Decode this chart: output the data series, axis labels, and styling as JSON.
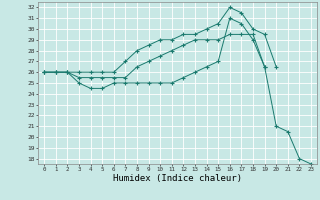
{
  "xlabel": "Humidex (Indice chaleur)",
  "xlim": [
    -0.5,
    23.5
  ],
  "ylim": [
    17.5,
    32.5
  ],
  "yticks": [
    18,
    19,
    20,
    21,
    22,
    23,
    24,
    25,
    26,
    27,
    28,
    29,
    30,
    31,
    32
  ],
  "xticks": [
    0,
    1,
    2,
    3,
    4,
    5,
    6,
    7,
    8,
    9,
    10,
    11,
    12,
    13,
    14,
    15,
    16,
    17,
    18,
    19,
    20,
    21,
    22,
    23
  ],
  "background_color": "#c8e8e5",
  "grid_color": "#ffffff",
  "line_color": "#1a7a6e",
  "series_max": [
    26,
    26,
    26,
    26,
    26,
    26,
    26,
    27,
    28,
    28.5,
    29,
    29,
    29.5,
    29.5,
    30,
    30.5,
    32,
    31.5,
    30,
    29.5,
    26.5,
    null,
    null,
    null
  ],
  "series_mean": [
    26,
    26,
    26,
    25.5,
    25.5,
    25.5,
    25.5,
    25.5,
    26.5,
    27,
    27.5,
    28,
    28.5,
    29,
    29,
    29,
    29.5,
    29.5,
    29.5,
    26.5,
    null,
    null,
    null,
    null
  ],
  "series_min": [
    26,
    26,
    26,
    25,
    24.5,
    24.5,
    25,
    25,
    25,
    25,
    25,
    25,
    25.5,
    26,
    26.5,
    27,
    31,
    30.5,
    29,
    26.5,
    21,
    20.5,
    18,
    17.5
  ]
}
